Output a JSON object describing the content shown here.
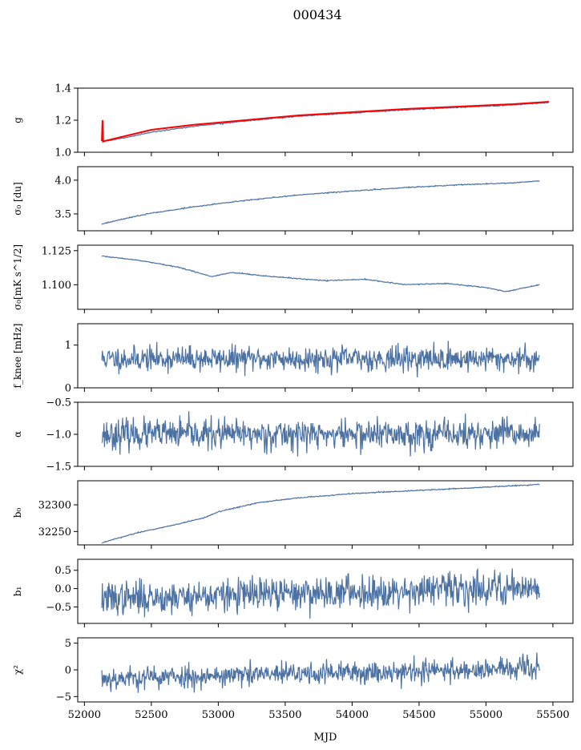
{
  "figure": {
    "title": "000434",
    "xlabel": "MJD"
  },
  "colors": {
    "series": "#4c72a4",
    "fit": "#ff0000"
  },
  "chart_data": [
    {
      "type": "line",
      "ylabel": "g",
      "xlim": [
        51950,
        55650
      ],
      "ylim": [
        1.0,
        1.4
      ],
      "yticks": [
        1.0,
        1.2,
        1.4
      ],
      "yticklabels": [
        "1.0",
        "1.2",
        "1.4"
      ],
      "series": [
        {
          "role": "data",
          "color": "#4c72a4",
          "x": [
            52130,
            52300,
            52500,
            52800,
            53200,
            53600,
            54000,
            54400,
            54800,
            55200,
            55470
          ],
          "y": [
            1.065,
            1.09,
            1.125,
            1.16,
            1.195,
            1.225,
            1.245,
            1.265,
            1.28,
            1.295,
            1.31
          ]
        },
        {
          "role": "fit",
          "color": "#ff0000",
          "x": [
            52130,
            52135,
            52140,
            52150,
            52300,
            52500,
            52800,
            53200,
            53600,
            54000,
            54400,
            54800,
            55200,
            55470
          ],
          "y": [
            1.07,
            1.2,
            1.07,
            1.07,
            1.1,
            1.14,
            1.17,
            1.2,
            1.23,
            1.25,
            1.27,
            1.285,
            1.3,
            1.315
          ]
        }
      ]
    },
    {
      "type": "line",
      "ylabel": "σ₀ [du]",
      "xlim": [
        51950,
        55650
      ],
      "ylim": [
        3.25,
        4.2
      ],
      "yticks": [
        3.5,
        4.0
      ],
      "yticklabels": [
        "3.5",
        "4.0"
      ],
      "series": [
        {
          "role": "data",
          "color": "#4c72a4",
          "x": [
            52130,
            52300,
            52500,
            52800,
            53200,
            53600,
            54000,
            54400,
            54800,
            55200,
            55400
          ],
          "y": [
            3.35,
            3.43,
            3.51,
            3.6,
            3.7,
            3.78,
            3.84,
            3.89,
            3.93,
            3.96,
            3.99
          ]
        }
      ]
    },
    {
      "type": "line",
      "ylabel": "σ₀[mK s^1/2]",
      "xlim": [
        51950,
        55650
      ],
      "ylim": [
        1.082,
        1.129
      ],
      "yticks": [
        1.1,
        1.125
      ],
      "yticklabels": [
        "1.100",
        "1.125"
      ],
      "series": [
        {
          "role": "data",
          "color": "#4c72a4",
          "x": [
            52130,
            52400,
            52700,
            52950,
            53100,
            53400,
            53800,
            54100,
            54400,
            54700,
            55000,
            55150,
            55400
          ],
          "y": [
            1.121,
            1.118,
            1.113,
            1.106,
            1.109,
            1.106,
            1.103,
            1.104,
            1.1,
            1.101,
            1.098,
            1.095,
            1.1
          ]
        }
      ]
    },
    {
      "type": "line",
      "ylabel": "f_knee [mHz]",
      "xlim": [
        51950,
        55650
      ],
      "ylim": [
        0,
        1.5
      ],
      "yticks": [
        0,
        1
      ],
      "yticklabels": [
        "0",
        "1"
      ],
      "noise": {
        "center": 0.68,
        "spread": 0.32,
        "seed": 11
      },
      "series": [
        {
          "role": "data",
          "color": "#4c72a4",
          "x_range": [
            52130,
            55400
          ],
          "points": 820
        }
      ]
    },
    {
      "type": "line",
      "ylabel": "α",
      "xlim": [
        51950,
        55650
      ],
      "ylim": [
        -1.5,
        -0.5
      ],
      "yticks": [
        -1.5,
        -1.0,
        -0.5
      ],
      "yticklabels": [
        "−1.5",
        "−1.0",
        "−0.5"
      ],
      "noise": {
        "center": -1.0,
        "spread": 0.26,
        "seed": 23
      },
      "series": [
        {
          "role": "data",
          "color": "#4c72a4",
          "x_range": [
            52130,
            55400
          ],
          "points": 820
        }
      ]
    },
    {
      "type": "line",
      "ylabel": "b₀",
      "xlim": [
        51950,
        55650
      ],
      "ylim": [
        32225,
        32345
      ],
      "yticks": [
        32250,
        32300
      ],
      "yticklabels": [
        "32250",
        "32300"
      ],
      "series": [
        {
          "role": "data",
          "color": "#4c72a4",
          "x": [
            52130,
            52400,
            52700,
            52900,
            53000,
            53300,
            53600,
            54000,
            54500,
            55000,
            55400
          ],
          "y": [
            32229,
            32248,
            32264,
            32276,
            32287,
            32304,
            32313,
            32321,
            32327,
            32333,
            32338
          ]
        }
      ]
    },
    {
      "type": "line",
      "ylabel": "b₁",
      "xlim": [
        51950,
        55650
      ],
      "ylim": [
        -0.95,
        0.8
      ],
      "yticks": [
        -0.5,
        0.0,
        0.5
      ],
      "yticklabels": [
        "−0.5",
        "0.0",
        "0.5"
      ],
      "noise": {
        "center_start": -0.28,
        "center_end": 0.05,
        "spread": 0.5,
        "seed": 37
      },
      "series": [
        {
          "role": "data",
          "color": "#4c72a4",
          "x_range": [
            52130,
            55400
          ],
          "points": 820
        }
      ]
    },
    {
      "type": "line",
      "ylabel": "χ²",
      "xlim": [
        51950,
        55650
      ],
      "ylim": [
        -6,
        6
      ],
      "yticks": [
        -5,
        0,
        5
      ],
      "yticklabels": [
        "−5",
        "0",
        "5"
      ],
      "xticks": [
        52000,
        52500,
        53000,
        53500,
        54000,
        54500,
        55000,
        55500
      ],
      "xticklabels": [
        "52000",
        "52500",
        "53000",
        "53500",
        "54000",
        "54500",
        "55000",
        "55500"
      ],
      "noise": {
        "center_start": -1.6,
        "center_end": 0.3,
        "spread": 2.4,
        "seed": 53
      },
      "series": [
        {
          "role": "data",
          "color": "#4c72a4",
          "x_range": [
            52130,
            55400
          ],
          "points": 820
        }
      ]
    }
  ]
}
